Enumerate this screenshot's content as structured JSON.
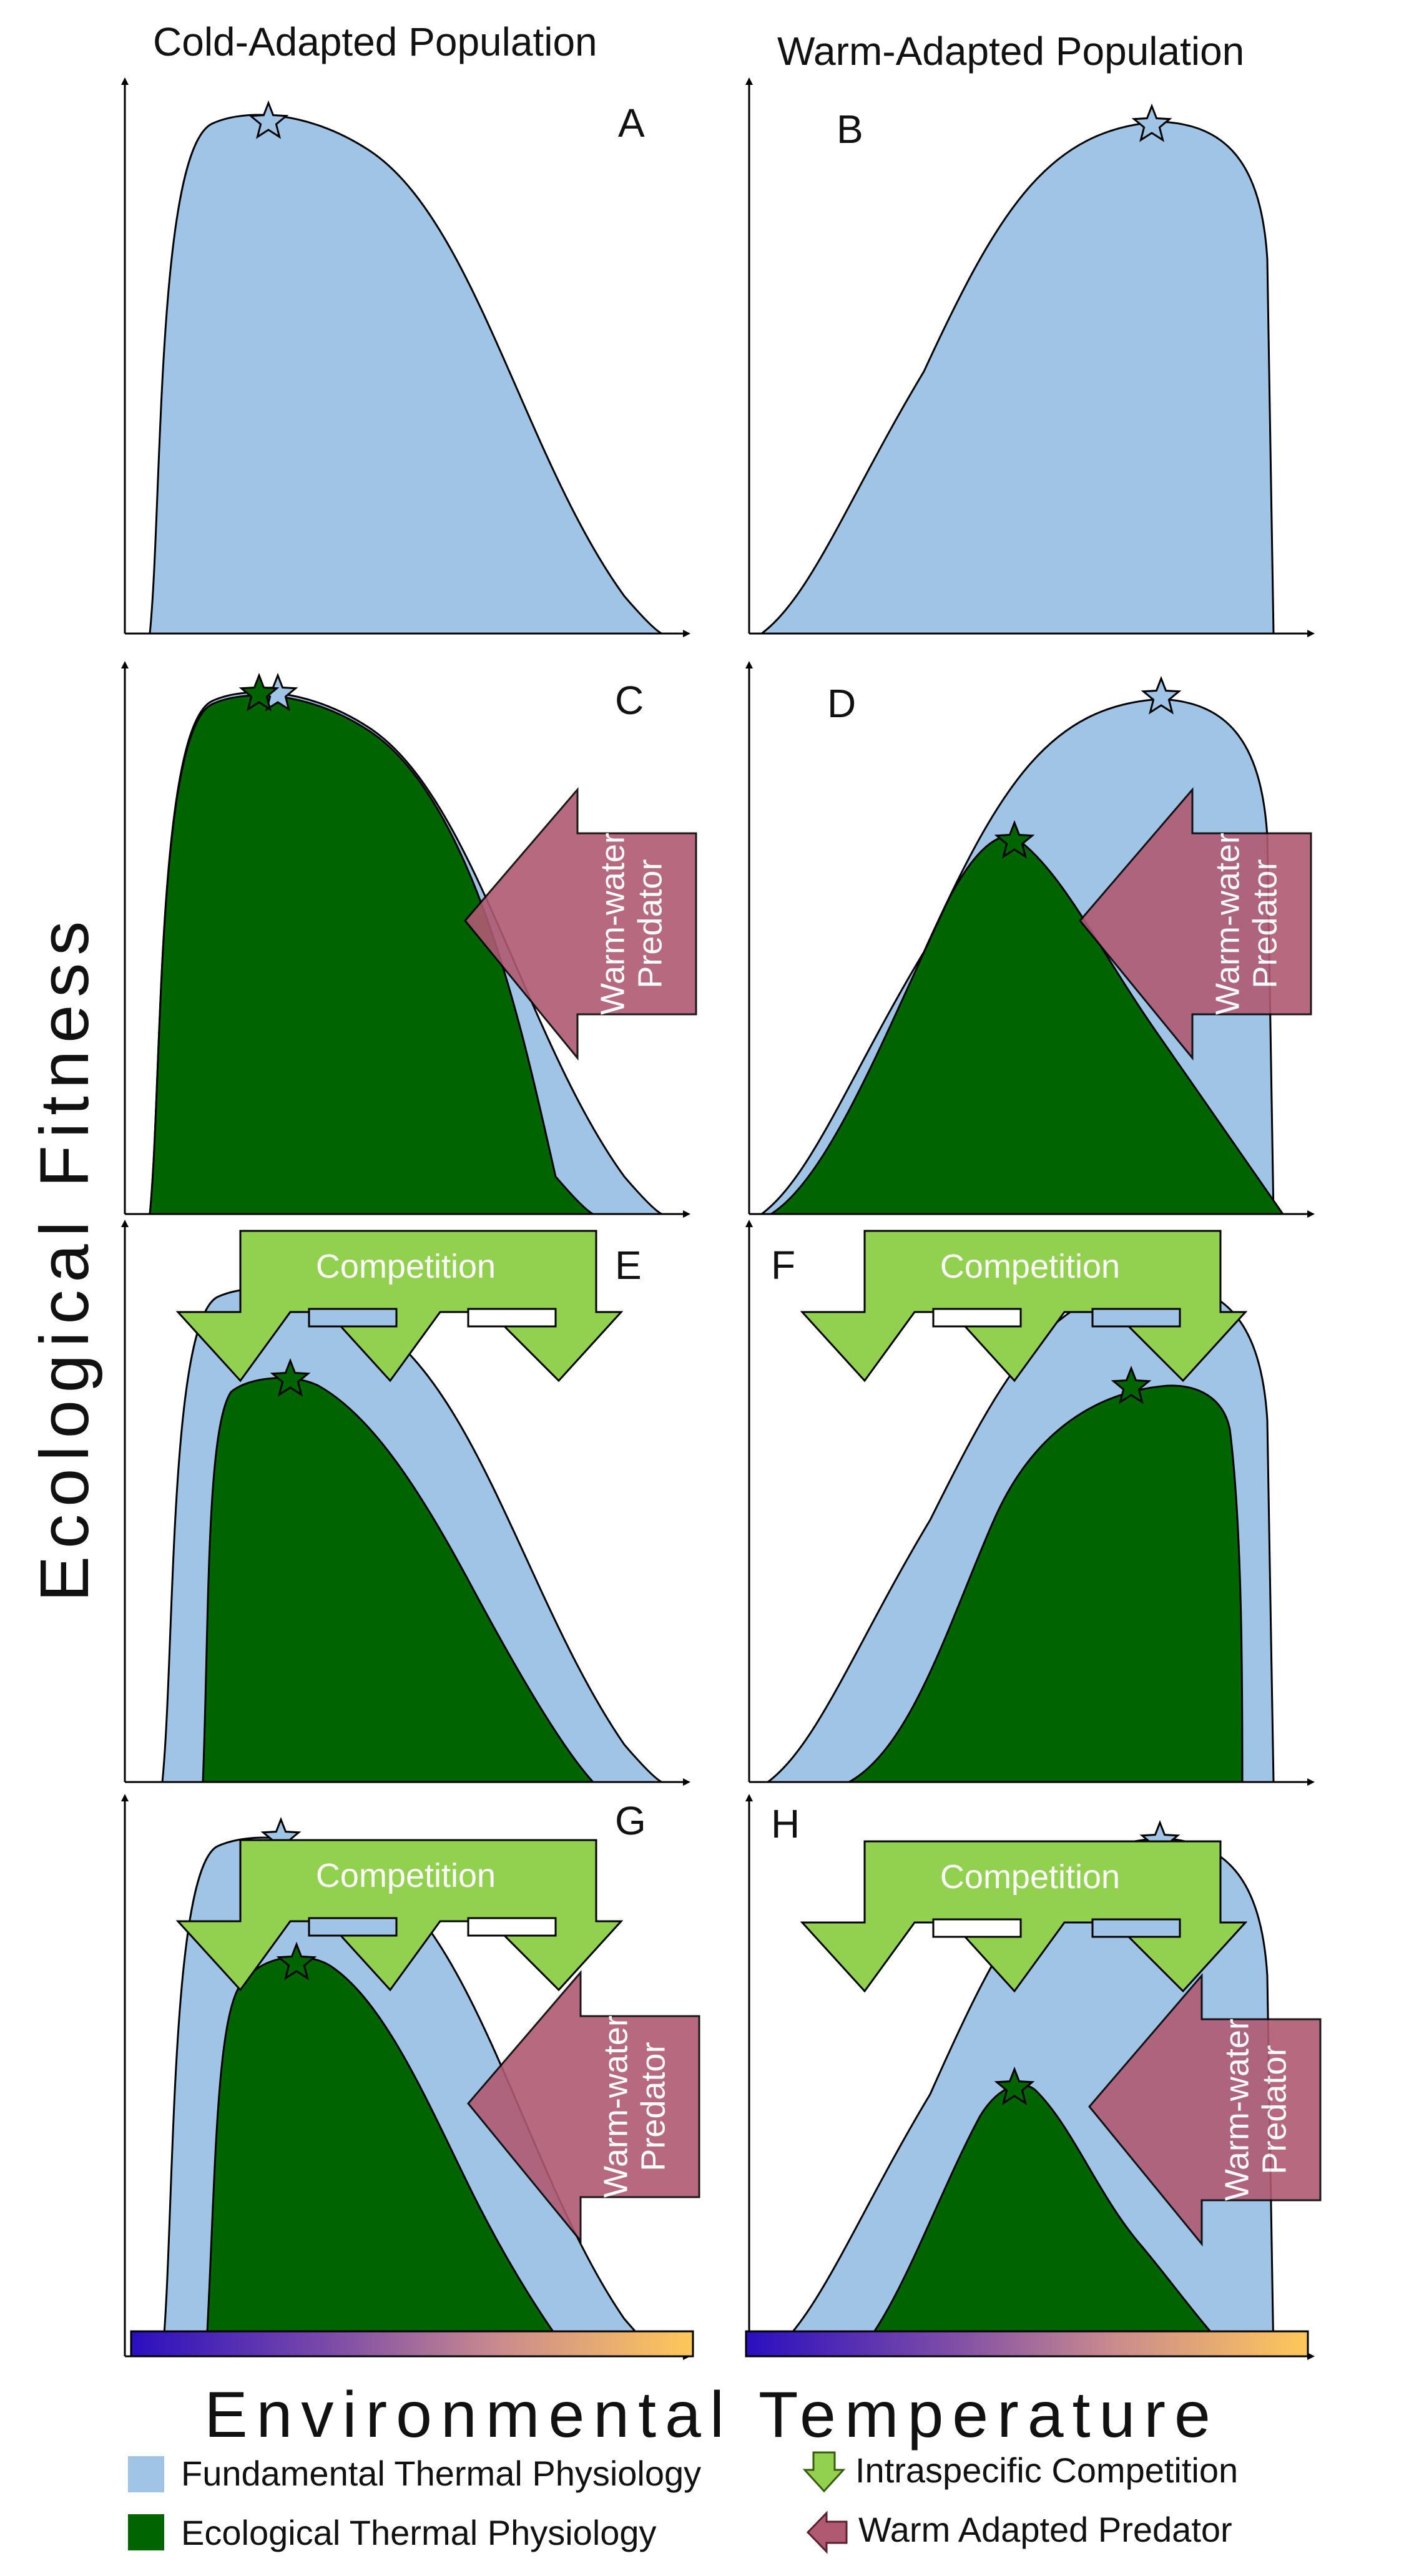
{
  "headers": {
    "left": "Cold-Adapted Population",
    "right": "Warm-Adapted Population"
  },
  "axes": {
    "ylabel": "Ecological Fitness",
    "xlabel": "Environmental Temperature"
  },
  "panels": {
    "A": {
      "label": "A"
    },
    "B": {
      "label": "B"
    },
    "C": {
      "label": "C",
      "predator": "Warm-water Predator"
    },
    "D": {
      "label": "D",
      "predator": "Warm-water Predator"
    },
    "E": {
      "label": "E",
      "competition": "Competition"
    },
    "F": {
      "label": "F",
      "competition": "Competition"
    },
    "G": {
      "label": "G",
      "competition": "Competition",
      "predator": "Warm-water Predator"
    },
    "H": {
      "label": "H",
      "competition": "Competition",
      "predator": "Warm-water Predator"
    }
  },
  "predator_label_lines": [
    "Warm-water",
    "Predator"
  ],
  "legend": {
    "fundamental": "Fundamental Thermal Physiology",
    "ecological": "Ecological Thermal Physiology",
    "competition": "Intraspecific Competition",
    "predator": "Warm Adapted Predator"
  },
  "colors": {
    "fundamental": "#a0c4e6",
    "ecological": "#006400",
    "competition": "#92d050",
    "predator": "#b05a72",
    "temperature_gradient": [
      "#2a0fbf",
      "#7a4aa8",
      "#c98a8e",
      "#ffc85a"
    ]
  }
}
